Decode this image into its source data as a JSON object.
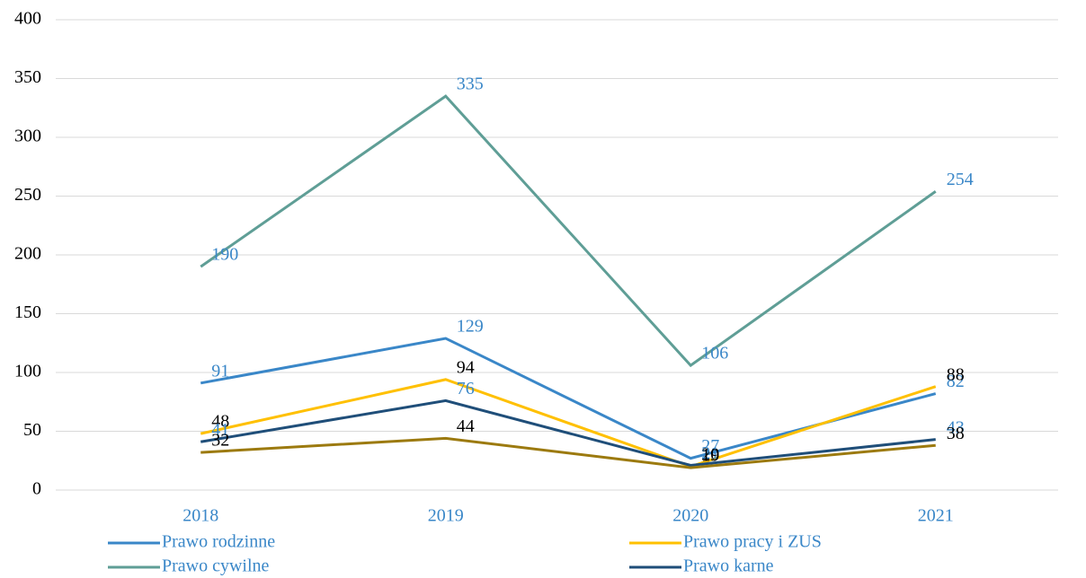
{
  "chart_data": {
    "type": "line",
    "categories": [
      "2018",
      "2019",
      "2020",
      "2021"
    ],
    "series": [
      {
        "name": "Prawo rodzinne",
        "color": "#3a87c8",
        "label_color": "#3a87c8",
        "values": [
          91,
          129,
          27,
          82
        ]
      },
      {
        "name": "Prawo pracy i ZUS",
        "color": "#ffc000",
        "label_color": "#000000",
        "values": [
          48,
          94,
          20,
          88
        ]
      },
      {
        "name": "Prawo cywilne",
        "color": "#5f9e96",
        "label_color": "#3a87c8",
        "values": [
          190,
          335,
          106,
          254
        ]
      },
      {
        "name": "Prawo karne",
        "color": "#1f4e79",
        "label_color": "#3a87c8",
        "values": [
          41,
          76,
          21,
          43
        ]
      },
      {
        "color": "#9c7a0f",
        "label_color": "#000000",
        "values": [
          32,
          44,
          19,
          38
        ]
      }
    ],
    "ylim": [
      0,
      400
    ],
    "yticks": [
      0,
      50,
      100,
      150,
      200,
      250,
      300,
      350,
      400
    ],
    "grid": true
  }
}
